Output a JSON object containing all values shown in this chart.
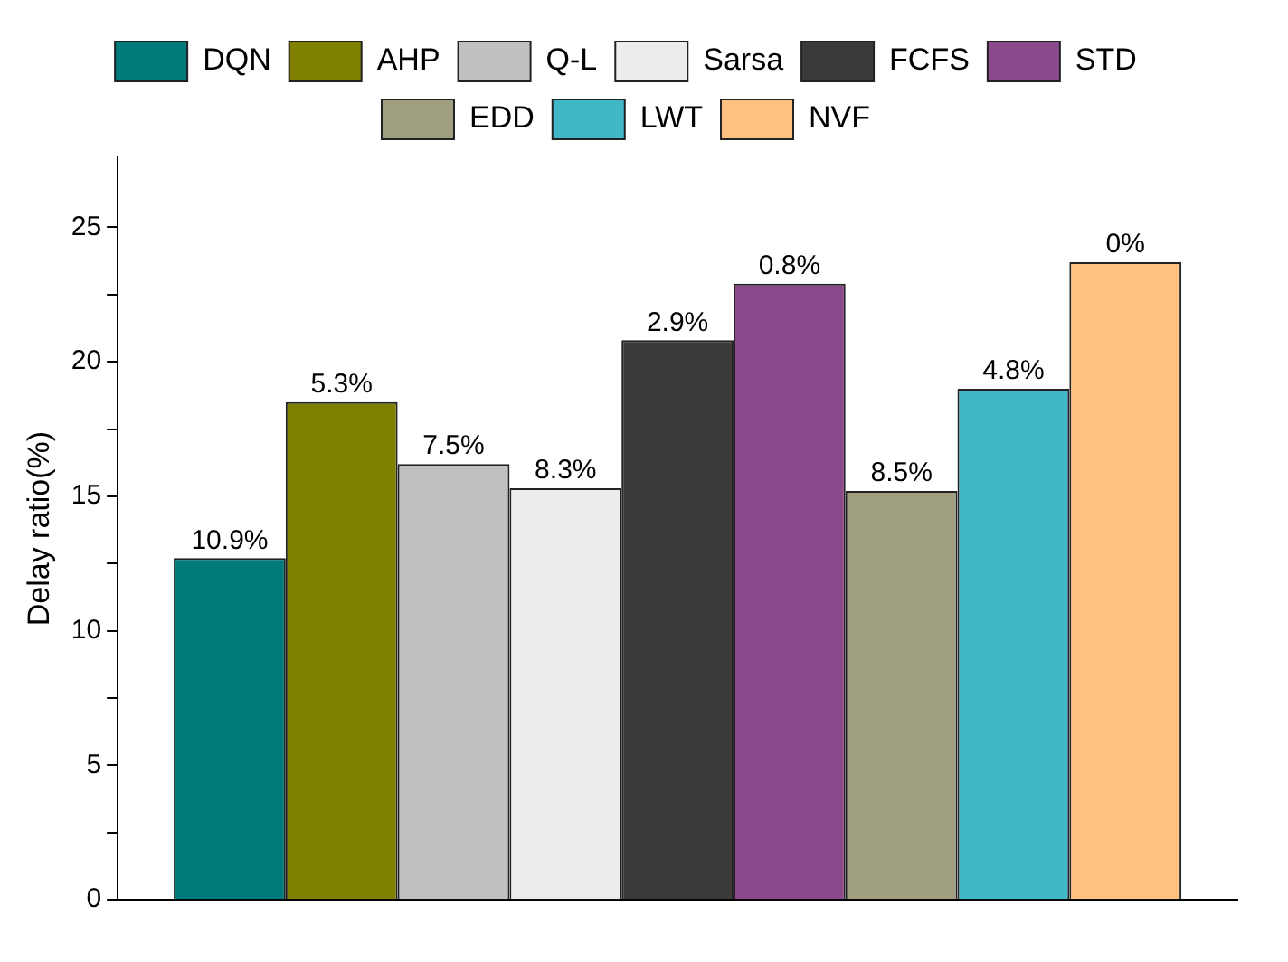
{
  "chart_data": {
    "type": "bar",
    "ylabel": "Delay ratio(%)",
    "categories": [
      null
    ],
    "series": [
      {
        "name": "DQN",
        "color": "#007a7a",
        "values": [
          12.7
        ]
      },
      {
        "name": "AHP",
        "color": "#808000",
        "values": [
          18.5
        ]
      },
      {
        "name": "Q-L",
        "color": "#c0c0c0",
        "values": [
          16.2
        ]
      },
      {
        "name": "Sarsa",
        "color": "#ececec",
        "values": [
          15.3
        ]
      },
      {
        "name": "FCFS",
        "color": "#3a3a3a",
        "values": [
          20.8
        ]
      },
      {
        "name": "STD",
        "color": "#8b4a8b",
        "values": [
          22.9
        ]
      },
      {
        "name": "EDD",
        "color": "#a0a080",
        "values": [
          15.2
        ]
      },
      {
        "name": "LWT",
        "color": "#40b8c8",
        "values": [
          19.0
        ]
      },
      {
        "name": "NVF",
        "color": "#ffc080",
        "values": [
          23.7
        ]
      }
    ],
    "annotations": [
      {
        "text": "10.9%",
        "y": 12.7
      },
      {
        "text": "5.3%",
        "y": 18.5
      },
      {
        "text": "7.5%",
        "y": 16.2
      },
      {
        "text": "8.3%",
        "y": 15.3
      },
      {
        "text": "2.9%",
        "y": 20.8
      },
      {
        "text": "0.8%",
        "y": 22.9
      },
      {
        "text": "8.5%",
        "y": 15.2
      },
      {
        "text": "4.8%",
        "y": 19.0
      },
      {
        "text": "0%",
        "y": 23.7
      }
    ],
    "ylim": [
      0,
      27.6
    ],
    "yticks": [
      0,
      {
        "value": 2.5,
        "label": null
      },
      5,
      {
        "value": 7.5,
        "label": null
      },
      10,
      {
        "value": 12.5,
        "label": null
      },
      15,
      {
        "value": 17.5,
        "label": null
      },
      20,
      {
        "value": 22.5,
        "label": null
      },
      25
    ],
    "grid": false,
    "legend": "top"
  }
}
